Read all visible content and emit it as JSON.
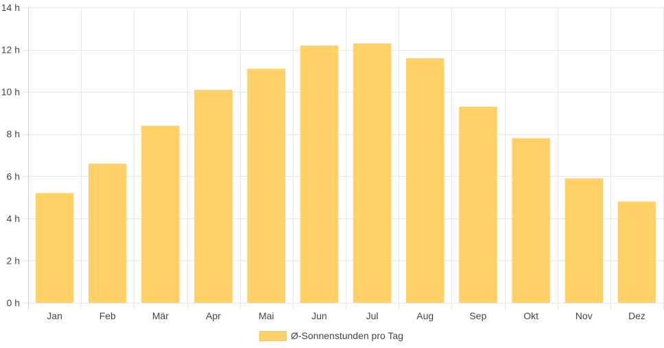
{
  "chart_data": {
    "type": "bar",
    "categories": [
      "Jan",
      "Feb",
      "Mär",
      "Apr",
      "Mai",
      "Jun",
      "Jul",
      "Aug",
      "Sep",
      "Okt",
      "Nov",
      "Dez"
    ],
    "series": [
      {
        "name": "Ø-Sonnenstunden pro Tag",
        "values": [
          5.2,
          6.6,
          8.4,
          10.1,
          11.1,
          12.2,
          12.3,
          11.6,
          9.3,
          7.8,
          5.9,
          4.8
        ]
      }
    ],
    "yticks": [
      "0 h",
      "2 h",
      "4 h",
      "6 h",
      "8 h",
      "10 h",
      "12 h",
      "14 h"
    ],
    "ylim": [
      0,
      14
    ],
    "title": "",
    "xlabel": "",
    "ylabel": "",
    "grid": true,
    "legend_position": "bottom",
    "colors": {
      "bar": "#ffd166",
      "grid": "#e6e6e6",
      "text": "#444444"
    }
  },
  "legend": {
    "label": "Ø-Sonnenstunden pro Tag"
  }
}
